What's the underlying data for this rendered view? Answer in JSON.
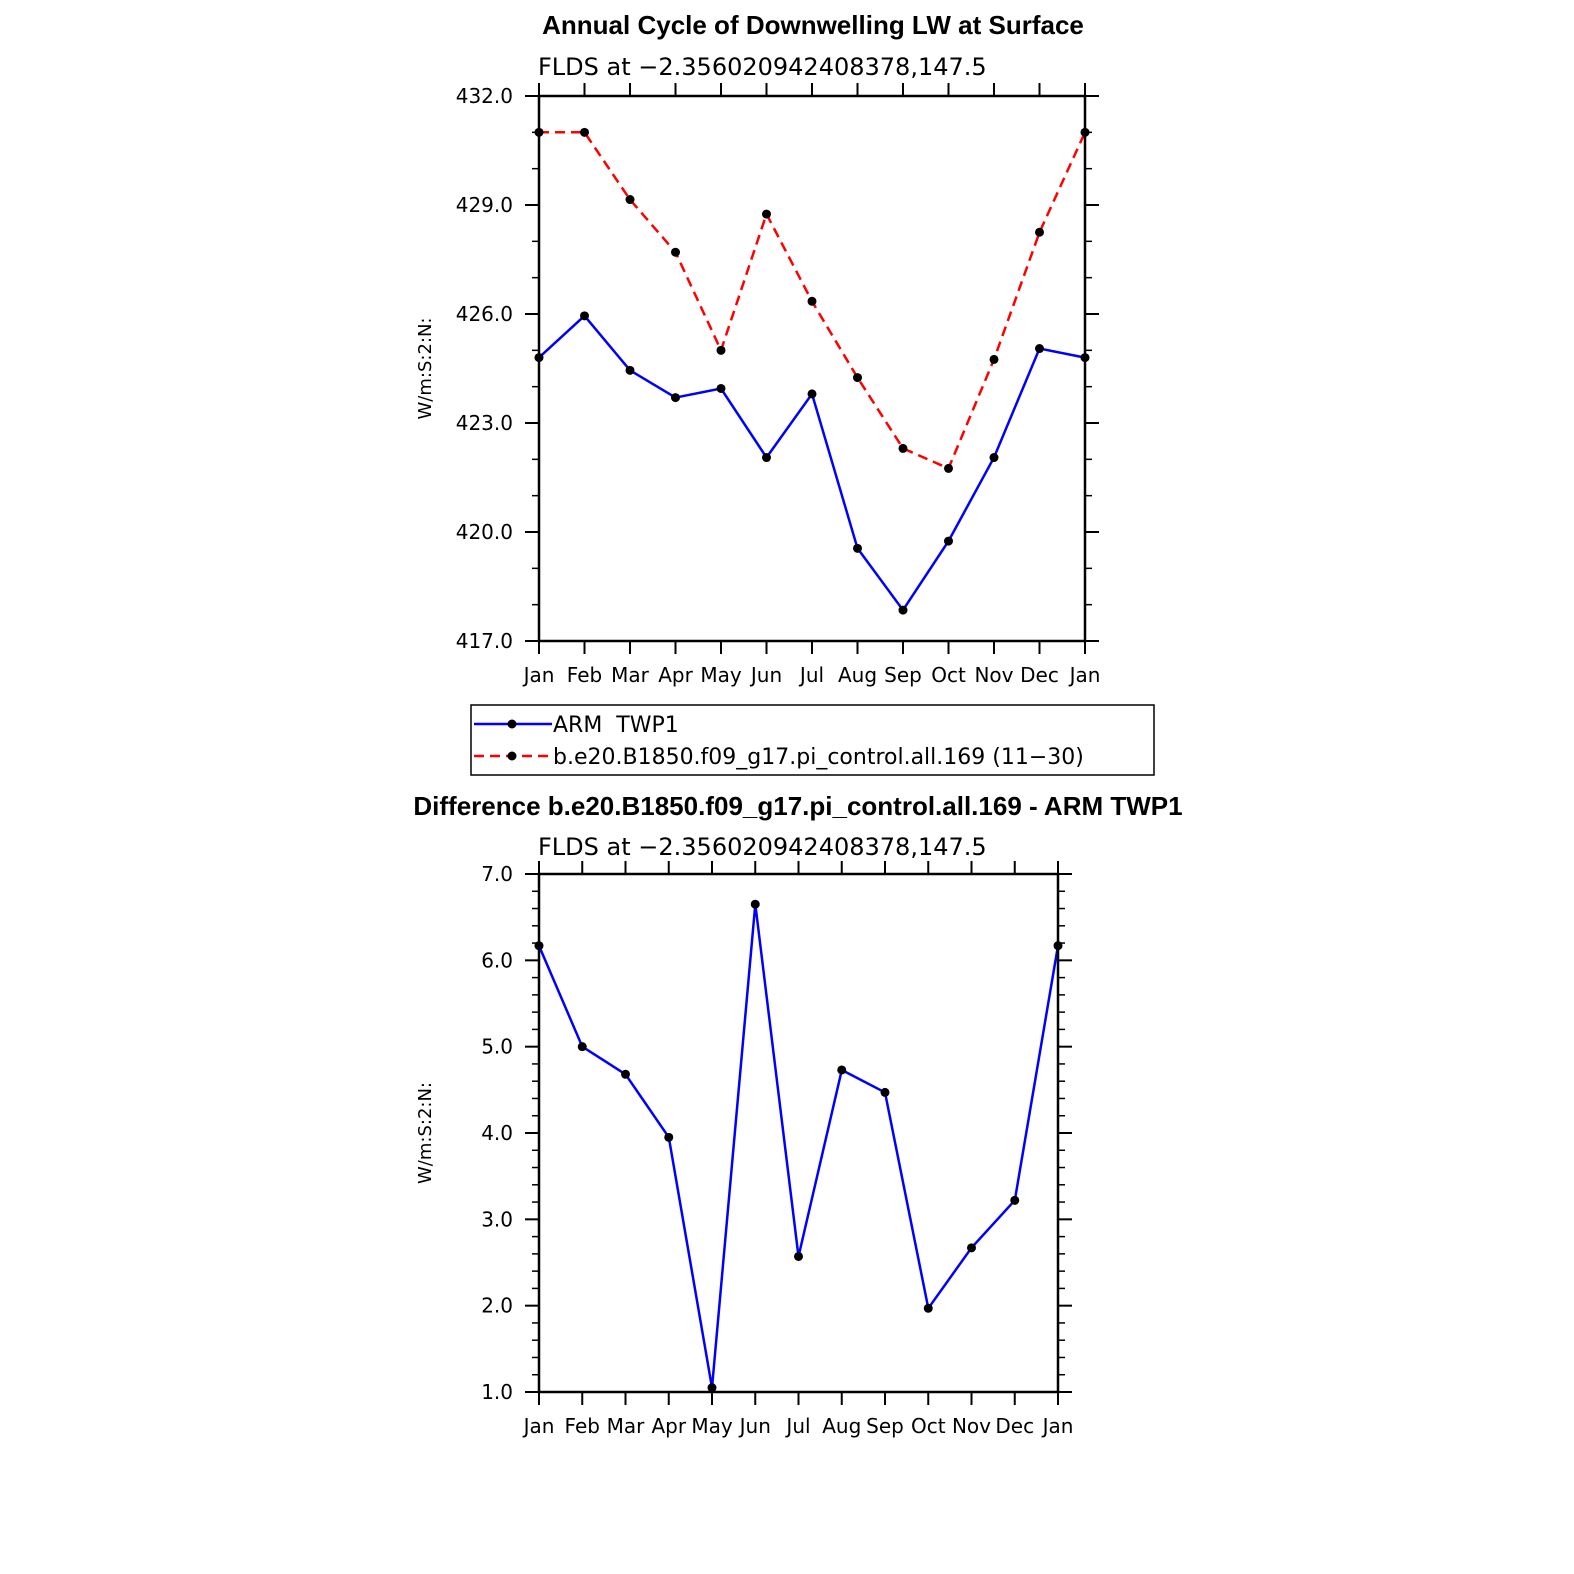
{
  "chart_data": [
    {
      "type": "line",
      "title": "Annual Cycle of Downwelling LW at Surface",
      "subtitle": "FLDS at −2.356020942408378,147.5",
      "ylabel": "W/m:S:2:N:",
      "ylim": [
        417.0,
        432.0
      ],
      "yticks": [
        "417.0",
        "420.0",
        "423.0",
        "426.0",
        "429.0",
        "432.0"
      ],
      "categories": [
        "Jan",
        "Feb",
        "Mar",
        "Apr",
        "May",
        "Jun",
        "Jul",
        "Aug",
        "Sep",
        "Oct",
        "Nov",
        "Dec",
        "Jan"
      ],
      "series": [
        {
          "name": "ARM  TWP1",
          "color": "#0000ff",
          "dash": "solid",
          "values": [
            424.8,
            425.95,
            424.45,
            423.7,
            423.95,
            422.05,
            423.8,
            419.55,
            417.85,
            419.75,
            422.05,
            425.05,
            424.8
          ]
        },
        {
          "name": "b.e20.B1850.f09_g17.pi_control.all.169 (11−30)",
          "color": "#ff0000",
          "dash": "dashed",
          "values": [
            431.0,
            431.0,
            429.15,
            427.7,
            425.0,
            428.75,
            426.35,
            424.25,
            422.3,
            421.75,
            424.75,
            428.25,
            431.0
          ]
        }
      ],
      "legend": "below"
    },
    {
      "type": "line",
      "title": "Difference b.e20.B1850.f09_g17.pi_control.all.169 - ARM TWP1",
      "subtitle": "FLDS at −2.356020942408378,147.5",
      "ylabel": "W/m:S:2:N:",
      "ylim": [
        1.0,
        7.0
      ],
      "yticks": [
        "1.0",
        "2.0",
        "3.0",
        "4.0",
        "5.0",
        "6.0",
        "7.0"
      ],
      "categories": [
        "Jan",
        "Feb",
        "Mar",
        "Apr",
        "May",
        "Jun",
        "Jul",
        "Aug",
        "Sep",
        "Oct",
        "Nov",
        "Dec",
        "Jan"
      ],
      "series": [
        {
          "color": "#0000ff",
          "dash": "solid",
          "values": [
            6.17,
            5.0,
            4.68,
            3.95,
            1.05,
            6.65,
            2.57,
            4.73,
            4.47,
            1.97,
            2.67,
            3.22,
            6.17
          ]
        }
      ]
    }
  ],
  "colors": {
    "axis": "#000000",
    "marker": "#000000"
  }
}
